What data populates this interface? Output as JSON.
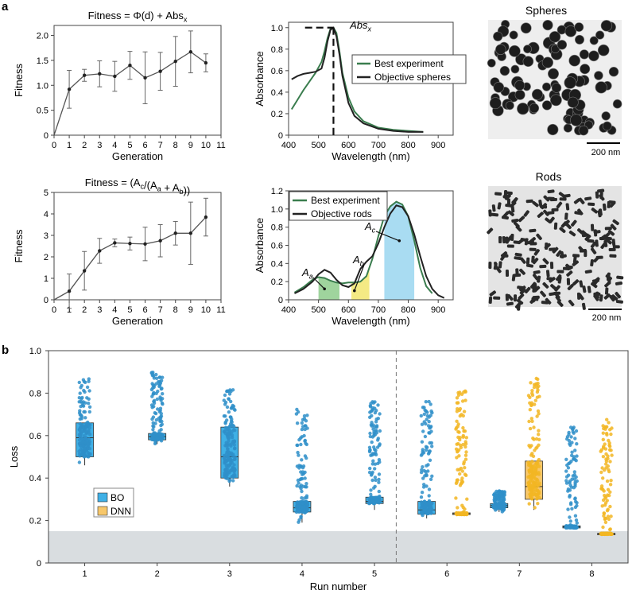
{
  "panel_labels": {
    "a": "a",
    "b": "b"
  },
  "colors": {
    "line_dark": "#222222",
    "best_green": "#3a7d4e",
    "bo_blue": "#2f8fc9",
    "bo_box": "#3fb0e6",
    "dnn_orange": "#f2b623",
    "dnn_box": "#f7c76a",
    "shade_green": "#9fd49d",
    "shade_yellow": "#f4ea84",
    "shade_blue": "#a9dcf2",
    "threshold_band": "#d9dde0"
  },
  "images": [
    {
      "title": "Spheres",
      "scale_bar": "200 nm",
      "icon": "spheres-micrograph"
    },
    {
      "title": "Rods",
      "scale_bar": "200 nm",
      "icon": "rods-micrograph"
    }
  ],
  "chart_data": [
    {
      "type": "line",
      "title": "Fitness = Φ(d) + Abs_x",
      "xlabel": "Generation",
      "ylabel": "Fitness",
      "x": [
        0,
        1,
        2,
        3,
        4,
        5,
        6,
        7,
        8,
        9,
        10
      ],
      "y": [
        0,
        0.92,
        1.2,
        1.23,
        1.18,
        1.4,
        1.15,
        1.28,
        1.48,
        1.67,
        1.45
      ],
      "err": [
        0,
        0.38,
        0.12,
        0.26,
        0.3,
        0.28,
        0.52,
        0.38,
        0.5,
        0.42,
        0.18
      ],
      "xlim": [
        0,
        11
      ],
      "ylim": [
        0,
        2.2
      ],
      "xticks": [
        0,
        1,
        2,
        3,
        4,
        5,
        6,
        7,
        8,
        9,
        10,
        11
      ],
      "yticks": [
        0,
        0.5,
        1.0,
        1.5,
        2.0
      ],
      "ytick_labels": [
        "0",
        "0.5",
        "1.0",
        "1.5",
        "2.0"
      ]
    },
    {
      "type": "line",
      "xlabel": "Wavelength (nm)",
      "ylabel": "Absorbance",
      "xlim": [
        400,
        950
      ],
      "ylim": [
        0,
        1.05
      ],
      "xticks": [
        400,
        500,
        600,
        700,
        800,
        900
      ],
      "yticks": [
        0,
        0.2,
        0.4,
        0.6,
        0.8,
        1.0
      ],
      "ytick_labels": [
        "0",
        "0.2",
        "0.4",
        "0.6",
        "0.8",
        "1.0"
      ],
      "annotation": "Abs_x",
      "marker_x": 550,
      "series": [
        {
          "name": "Best experiment",
          "x": [
            410,
            430,
            450,
            470,
            490,
            510,
            520,
            530,
            540,
            550,
            560,
            570,
            580,
            600,
            620,
            650,
            700,
            750,
            800,
            850
          ],
          "y": [
            0.24,
            0.33,
            0.42,
            0.5,
            0.58,
            0.68,
            0.78,
            0.9,
            0.99,
            1.0,
            0.95,
            0.78,
            0.58,
            0.35,
            0.22,
            0.13,
            0.07,
            0.05,
            0.04,
            0.03
          ]
        },
        {
          "name": "Objective spheres",
          "x": [
            410,
            430,
            450,
            470,
            490,
            510,
            520,
            530,
            540,
            550,
            560,
            570,
            580,
            600,
            620,
            650,
            700,
            750,
            800,
            850
          ],
          "y": [
            0.52,
            0.55,
            0.57,
            0.58,
            0.59,
            0.62,
            0.72,
            0.87,
            0.98,
            1.0,
            0.92,
            0.75,
            0.55,
            0.3,
            0.18,
            0.11,
            0.06,
            0.04,
            0.03,
            0.03
          ]
        }
      ]
    },
    {
      "type": "line",
      "title": "Fitness = (A_c/(A_a + A_b))",
      "xlabel": "Generation",
      "ylabel": "Fitness",
      "x": [
        0,
        1,
        2,
        3,
        4,
        5,
        6,
        7,
        8,
        9,
        10
      ],
      "y": [
        0,
        0.4,
        1.35,
        2.28,
        2.65,
        2.62,
        2.6,
        2.75,
        3.1,
        3.1,
        3.85
      ],
      "err": [
        0,
        0.8,
        0.9,
        0.58,
        0.18,
        0.3,
        0.78,
        0.75,
        0.55,
        1.45,
        0.88
      ],
      "xlim": [
        0,
        11
      ],
      "ylim": [
        0,
        5
      ],
      "xticks": [
        0,
        1,
        2,
        3,
        4,
        5,
        6,
        7,
        8,
        9,
        10,
        11
      ],
      "yticks": [
        0,
        1,
        2,
        3,
        4,
        5
      ],
      "ytick_labels": [
        "0",
        "1",
        "2",
        "3",
        "4",
        "5"
      ]
    },
    {
      "type": "line",
      "xlabel": "Wavelength (nm)",
      "ylabel": "Absorbance",
      "xlim": [
        400,
        950
      ],
      "ylim": [
        0,
        1.2
      ],
      "xticks": [
        400,
        500,
        600,
        700,
        800,
        900
      ],
      "yticks": [
        0,
        0.2,
        0.4,
        0.6,
        0.8,
        1.0,
        1.2
      ],
      "ytick_labels": [
        "0",
        "0.2",
        "0.4",
        "0.6",
        "0.8",
        "1.0",
        "1.2"
      ],
      "shaded_regions": [
        {
          "label": "A_a",
          "x0": 500,
          "x1": 570,
          "color_key": "shade_green"
        },
        {
          "label": "A_b",
          "x0": 610,
          "x1": 670,
          "color_key": "shade_yellow"
        },
        {
          "label": "A_c",
          "x0": 720,
          "x1": 820,
          "color_key": "shade_blue"
        }
      ],
      "series": [
        {
          "name": "Best experiment",
          "x": [
            420,
            450,
            480,
            500,
            520,
            540,
            560,
            580,
            600,
            620,
            640,
            660,
            680,
            700,
            720,
            740,
            760,
            780,
            800,
            820,
            840,
            860,
            880
          ],
          "y": [
            0.08,
            0.14,
            0.22,
            0.25,
            0.24,
            0.21,
            0.19,
            0.18,
            0.19,
            0.19,
            0.2,
            0.26,
            0.45,
            0.7,
            0.92,
            1.03,
            1.08,
            1.05,
            0.92,
            0.65,
            0.35,
            0.15,
            0.07
          ]
        },
        {
          "name": "Objective rods",
          "x": [
            420,
            450,
            480,
            500,
            520,
            540,
            560,
            580,
            600,
            620,
            640,
            660,
            680,
            700,
            720,
            740,
            760,
            780,
            800,
            820,
            840,
            860,
            880,
            900,
            920
          ],
          "y": [
            0.07,
            0.12,
            0.2,
            0.28,
            0.33,
            0.3,
            0.22,
            0.16,
            0.14,
            0.18,
            0.34,
            0.42,
            0.48,
            0.62,
            0.8,
            0.95,
            1.04,
            1.02,
            0.92,
            0.72,
            0.48,
            0.26,
            0.12,
            0.05,
            0.02
          ]
        }
      ]
    },
    {
      "type": "box",
      "xlabel": "Run number",
      "ylabel": "Loss",
      "ylim": [
        0,
        1.0
      ],
      "yticks": [
        0,
        0.2,
        0.4,
        0.6,
        0.8,
        1.0
      ],
      "ytick_labels": [
        "0",
        "0.2",
        "0.4",
        "0.6",
        "0.8",
        "1.0"
      ],
      "categories": [
        "1",
        "2",
        "3",
        "4",
        "5",
        "6",
        "7",
        "8"
      ],
      "threshold": 0.15,
      "divider_after_run": 5,
      "legend": [
        "BO",
        "DNN"
      ],
      "series": [
        {
          "name": "BO",
          "boxes": [
            {
              "run": 1,
              "min": 0.46,
              "q1": 0.5,
              "median": 0.59,
              "q3": 0.66,
              "max": 0.88
            },
            {
              "run": 2,
              "min": 0.56,
              "q1": 0.58,
              "median": 0.595,
              "q3": 0.61,
              "max": 0.9
            },
            {
              "run": 3,
              "min": 0.36,
              "q1": 0.4,
              "median": 0.5,
              "q3": 0.64,
              "max": 0.82
            },
            {
              "run": 4,
              "min": 0.19,
              "q1": 0.24,
              "median": 0.26,
              "q3": 0.29,
              "max": 0.73
            },
            {
              "run": 5,
              "min": 0.25,
              "q1": 0.28,
              "median": 0.29,
              "q3": 0.31,
              "max": 0.76
            },
            {
              "run": 6,
              "min": 0.21,
              "q1": 0.23,
              "median": 0.25,
              "q3": 0.29,
              "max": 0.76
            },
            {
              "run": 7,
              "min": 0.24,
              "q1": 0.26,
              "median": 0.27,
              "q3": 0.28,
              "max": 0.34
            },
            {
              "run": 8,
              "min": 0.16,
              "q1": 0.165,
              "median": 0.17,
              "q3": 0.175,
              "max": 0.65
            }
          ]
        },
        {
          "name": "DNN",
          "boxes": [
            {
              "run": 6,
              "min": 0.225,
              "q1": 0.228,
              "median": 0.232,
              "q3": 0.236,
              "max": 0.81
            },
            {
              "run": 7,
              "min": 0.25,
              "q1": 0.3,
              "median": 0.36,
              "q3": 0.48,
              "max": 0.87
            },
            {
              "run": 8,
              "min": 0.13,
              "q1": 0.135,
              "median": 0.137,
              "q3": 0.14,
              "max": 0.68
            }
          ]
        }
      ]
    }
  ]
}
